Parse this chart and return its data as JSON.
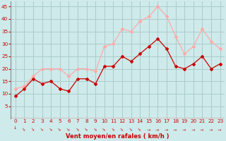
{
  "x": [
    0,
    1,
    2,
    3,
    4,
    5,
    6,
    7,
    8,
    9,
    10,
    11,
    12,
    13,
    14,
    15,
    16,
    17,
    18,
    19,
    20,
    21,
    22,
    23
  ],
  "wind_mean": [
    9,
    12,
    16,
    14,
    15,
    12,
    11,
    16,
    16,
    14,
    21,
    21,
    25,
    23,
    26,
    29,
    32,
    28,
    21,
    20,
    22,
    25,
    20,
    22
  ],
  "wind_gust": [
    12,
    13,
    17,
    20,
    20,
    20,
    17,
    20,
    20,
    19,
    29,
    30,
    36,
    35,
    39,
    41,
    45,
    41,
    33,
    26,
    29,
    36,
    31,
    28
  ],
  "mean_color": "#cc0000",
  "gust_color": "#ffaaaa",
  "bg_color": "#ceeaea",
  "grid_color": "#aacccc",
  "xlabel": "Vent moyen/en rafales ( km/h )",
  "xlabel_color": "#cc0000",
  "tick_color": "#cc0000",
  "ylim": [
    0,
    47
  ],
  "yticks": [
    5,
    10,
    15,
    20,
    25,
    30,
    35,
    40,
    45
  ],
  "xlim": [
    -0.5,
    23.5
  ],
  "arrow_angles": [
    180,
    215,
    215,
    220,
    225,
    225,
    230,
    225,
    225,
    225,
    225,
    220,
    220,
    220,
    220,
    270,
    270,
    270,
    270,
    270,
    270,
    270,
    270,
    270
  ]
}
